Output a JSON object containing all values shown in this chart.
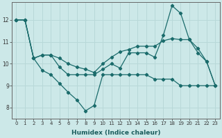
{
  "xlabel": "Humidex (Indice chaleur)",
  "bg_color": "#cce8e8",
  "line_color": "#1a6b6b",
  "grid_color": "#b8d8d8",
  "xlim": [
    -0.5,
    23.5
  ],
  "ylim": [
    7.5,
    12.8
  ],
  "xticks": [
    0,
    1,
    2,
    3,
    4,
    5,
    6,
    7,
    8,
    9,
    10,
    11,
    12,
    13,
    14,
    15,
    16,
    17,
    18,
    19,
    20,
    21,
    22,
    23
  ],
  "yticks": [
    8,
    9,
    10,
    11,
    12
  ],
  "line1_x": [
    0,
    1,
    2,
    3,
    4,
    5,
    6,
    7,
    8,
    9,
    10,
    11,
    12,
    13,
    14,
    15,
    16,
    17,
    18,
    19,
    20,
    21,
    22,
    23
  ],
  "line1_y": [
    12.0,
    12.0,
    10.25,
    9.7,
    9.5,
    9.1,
    8.7,
    8.35,
    7.85,
    8.1,
    9.5,
    9.5,
    9.5,
    9.5,
    9.5,
    9.5,
    9.3,
    9.3,
    9.3,
    9.0,
    9.0,
    9.0,
    9.0,
    9.0
  ],
  "line2_x": [
    0,
    1,
    2,
    3,
    4,
    5,
    6,
    7,
    8,
    9,
    10,
    11,
    12,
    13,
    14,
    15,
    16,
    17,
    18,
    19,
    20,
    21,
    22,
    23
  ],
  "line2_y": [
    12.0,
    12.0,
    10.25,
    10.4,
    10.4,
    9.85,
    9.5,
    9.5,
    9.5,
    9.5,
    9.75,
    10.0,
    9.8,
    10.5,
    10.5,
    10.5,
    10.3,
    11.3,
    12.65,
    12.3,
    11.1,
    10.5,
    10.1,
    9.0
  ],
  "line3_x": [
    0,
    1,
    2,
    3,
    4,
    5,
    6,
    7,
    8,
    9,
    10,
    11,
    12,
    13,
    14,
    15,
    16,
    17,
    18,
    19,
    20,
    21,
    22,
    23
  ],
  "line3_y": [
    12.0,
    12.0,
    10.25,
    10.4,
    10.4,
    10.25,
    10.0,
    9.85,
    9.75,
    9.6,
    10.0,
    10.3,
    10.55,
    10.65,
    10.8,
    10.8,
    10.8,
    11.05,
    11.15,
    11.1,
    11.1,
    10.7,
    10.1,
    9.0
  ],
  "marker_x1": [
    0,
    1,
    2,
    3,
    4,
    5,
    6,
    7,
    8,
    9,
    10,
    23
  ],
  "marker_x2": [
    0,
    1,
    2,
    3,
    10,
    11,
    13,
    14,
    17,
    18,
    19,
    20,
    21,
    22,
    23
  ],
  "marker_x3": [
    0,
    1,
    2,
    5,
    10,
    12,
    13,
    17,
    18,
    20,
    21,
    22,
    23
  ]
}
